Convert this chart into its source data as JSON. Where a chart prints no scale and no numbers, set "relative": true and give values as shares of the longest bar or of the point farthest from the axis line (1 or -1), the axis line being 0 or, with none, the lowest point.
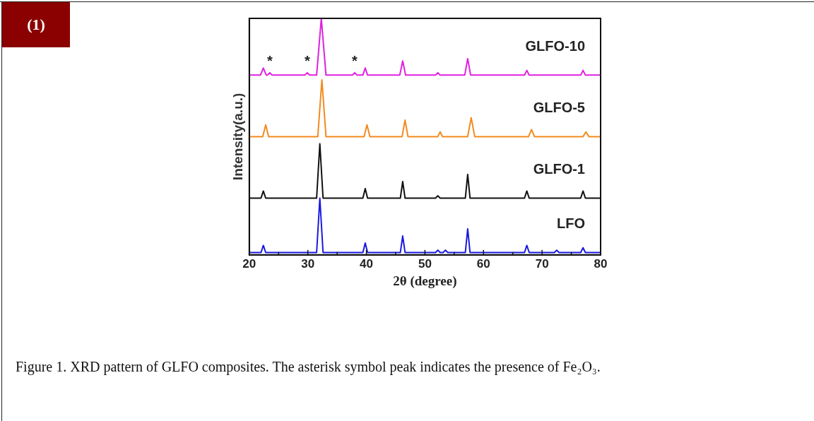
{
  "chart_data": {
    "type": "line",
    "relative": true,
    "xlabel": "2θ (degree)",
    "ylabel": "Intensity(a.u.)",
    "xlim": [
      20,
      80
    ],
    "xticks": [
      20,
      {
        "value": 25,
        "label": null
      },
      30,
      {
        "value": 35,
        "label": null
      },
      40,
      {
        "value": 45,
        "label": null
      },
      50,
      {
        "value": 55,
        "label": null
      },
      60,
      {
        "value": 65,
        "label": null
      },
      70,
      {
        "value": 75,
        "label": null
      },
      80
    ],
    "grid": false,
    "legend": false,
    "marker": "none",
    "line_style": "solid",
    "series": [
      {
        "name": "GLFO-10",
        "color": "#e020e0",
        "x": [
          20,
          21.9,
          22.4,
          22.9,
          23.1,
          23.5,
          23.9,
          29.5,
          29.9,
          30.3,
          31.5,
          32.3,
          33.1,
          37.6,
          38,
          38.4,
          39.4,
          39.8,
          40.2,
          45.7,
          46.2,
          46.7,
          51.8,
          52.2,
          52.6,
          56.8,
          57.3,
          57.8,
          67,
          67.4,
          67.8,
          76.6,
          77,
          77.4,
          80
        ],
        "values": [
          0.76,
          0.76,
          0.79,
          0.76,
          0.76,
          0.77,
          0.76,
          0.76,
          0.77,
          0.76,
          0.76,
          1.0,
          0.76,
          0.76,
          0.77,
          0.76,
          0.76,
          0.79,
          0.76,
          0.76,
          0.82,
          0.76,
          0.76,
          0.77,
          0.76,
          0.76,
          0.83,
          0.76,
          0.76,
          0.78,
          0.76,
          0.76,
          0.78,
          0.76,
          0.76
        ]
      },
      {
        "name": "GLFO-5",
        "color": "#f28a1e",
        "x": [
          20,
          22.3,
          22.8,
          23.3,
          31.7,
          32.4,
          33.1,
          39.6,
          40.1,
          40.6,
          46.1,
          46.6,
          47.1,
          52.2,
          52.6,
          53,
          57.3,
          57.9,
          58.5,
          67.7,
          68.2,
          68.7,
          77,
          77.5,
          78,
          80
        ],
        "values": [
          0.5,
          0.5,
          0.55,
          0.5,
          0.5,
          0.74,
          0.5,
          0.5,
          0.55,
          0.5,
          0.5,
          0.57,
          0.5,
          0.5,
          0.52,
          0.5,
          0.5,
          0.58,
          0.5,
          0.5,
          0.53,
          0.5,
          0.5,
          0.52,
          0.5,
          0.5
        ]
      },
      {
        "name": "GLFO-1",
        "color": "#111111",
        "x": [
          20,
          22,
          22.4,
          22.8,
          31.5,
          32.05,
          32.6,
          39.4,
          39.8,
          40.2,
          45.8,
          46.2,
          46.6,
          51.8,
          52.2,
          52.6,
          56.9,
          57.3,
          57.7,
          67,
          67.4,
          67.8,
          76.6,
          77,
          77.4,
          80
        ],
        "values": [
          0.24,
          0.24,
          0.27,
          0.24,
          0.24,
          0.47,
          0.24,
          0.24,
          0.28,
          0.24,
          0.24,
          0.31,
          0.24,
          0.24,
          0.25,
          0.24,
          0.24,
          0.34,
          0.24,
          0.24,
          0.27,
          0.24,
          0.24,
          0.27,
          0.24,
          0.24
        ]
      },
      {
        "name": "LFO",
        "color": "#1a1ae0",
        "x": [
          20,
          22,
          22.4,
          22.8,
          31.5,
          32.05,
          32.6,
          39.4,
          39.8,
          40.2,
          45.8,
          46.2,
          46.6,
          51.8,
          52.2,
          52.6,
          53.1,
          53.5,
          53.9,
          56.9,
          57.3,
          57.7,
          67,
          67.4,
          67.8,
          72.1,
          72.5,
          72.9,
          76.6,
          77,
          77.4,
          80
        ],
        "values": [
          0.01,
          0.01,
          0.04,
          0.01,
          0.01,
          0.24,
          0.01,
          0.01,
          0.05,
          0.01,
          0.01,
          0.08,
          0.01,
          0.01,
          0.02,
          0.01,
          0.01,
          0.02,
          0.01,
          0.01,
          0.11,
          0.01,
          0.01,
          0.04,
          0.01,
          0.01,
          0.02,
          0.01,
          0.01,
          0.03,
          0.01,
          0.01
        ]
      }
    ],
    "annotations": [
      {
        "text": "*",
        "x": 23.5,
        "y": 0.77
      },
      {
        "text": "*",
        "x": 29.9,
        "y": 0.77
      },
      {
        "text": "*",
        "x": 38,
        "y": 0.77
      },
      "(1)",
      "Figure 1. XRD pattern of GLFO composites. The asterisk symbol peak indicates the presence of Fe₂O₃."
    ]
  }
}
